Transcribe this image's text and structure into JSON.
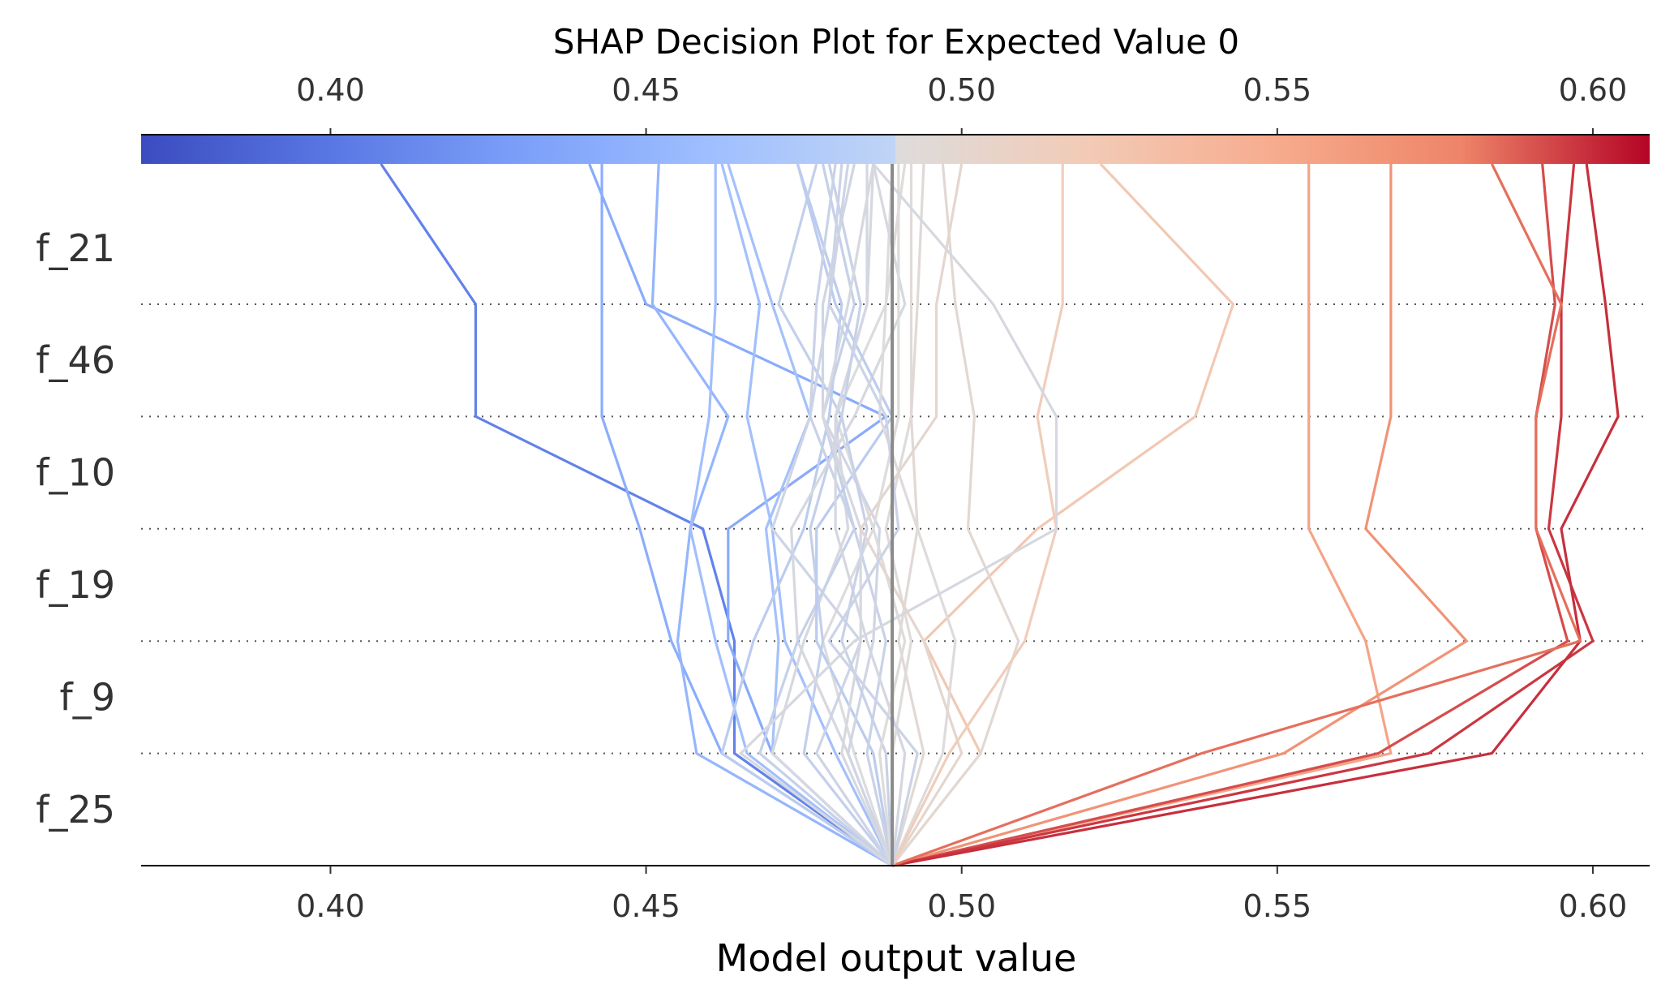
{
  "chart_data": {
    "type": "line",
    "title": "SHAP Decision Plot for Expected Value 0",
    "xlabel": "Model output value",
    "ylabel": "",
    "features": [
      "f_21",
      "f_46",
      "f_10",
      "f_19",
      "f_9",
      "f_25"
    ],
    "xlim": [
      0.37,
      0.609
    ],
    "xticks": [
      0.4,
      0.45,
      0.5,
      0.55,
      0.6
    ],
    "tick_labels": [
      "0.40",
      "0.45",
      "0.50",
      "0.55",
      "0.60"
    ],
    "base_value": 0.489,
    "colormap": "coolwarm",
    "colorbar_range": [
      0.37,
      0.609
    ],
    "grid": "dotted horizontal lines between features",
    "series": [
      {
        "values": [
          0.489,
          0.503,
          0.494,
          0.512,
          0.537,
          0.543,
          0.522
        ]
      },
      {
        "values": [
          0.489,
          0.568,
          0.564,
          0.555,
          0.555,
          0.555,
          0.555
        ]
      },
      {
        "values": [
          0.489,
          0.551,
          0.58,
          0.564,
          0.568,
          0.568,
          0.568
        ]
      },
      {
        "values": [
          0.489,
          0.566,
          0.596,
          0.591,
          0.591,
          0.594,
          0.592
        ]
      },
      {
        "values": [
          0.489,
          0.574,
          0.6,
          0.593,
          0.595,
          0.595,
          0.597
        ]
      },
      {
        "values": [
          0.489,
          0.584,
          0.598,
          0.595,
          0.604,
          0.602,
          0.599
        ]
      },
      {
        "values": [
          0.489,
          0.538,
          0.598,
          0.591,
          0.591,
          0.595,
          0.584
        ]
      },
      {
        "values": [
          0.489,
          0.464,
          0.464,
          0.459,
          0.423,
          0.423,
          0.408
        ]
      },
      {
        "values": [
          0.489,
          0.47,
          0.463,
          0.463,
          0.488,
          0.45,
          0.441
        ]
      },
      {
        "values": [
          0.489,
          0.462,
          0.454,
          0.449,
          0.443,
          0.443,
          0.443
        ]
      },
      {
        "values": [
          0.489,
          0.458,
          0.455,
          0.457,
          0.463,
          0.451,
          0.452
        ]
      },
      {
        "values": [
          0.489,
          0.466,
          0.461,
          0.457,
          0.46,
          0.461,
          0.461
        ]
      },
      {
        "values": [
          0.489,
          0.48,
          0.472,
          0.47,
          0.466,
          0.468,
          0.462
        ]
      },
      {
        "values": [
          0.489,
          0.47,
          0.471,
          0.469,
          0.476,
          0.47,
          0.463
        ]
      },
      {
        "values": [
          0.489,
          0.462,
          0.467,
          0.475,
          0.479,
          0.481,
          0.474
        ]
      },
      {
        "values": [
          0.489,
          0.47,
          0.475,
          0.482,
          0.48,
          0.485,
          0.486
        ]
      },
      {
        "values": [
          0.489,
          0.483,
          0.478,
          0.486,
          0.48,
          0.488,
          0.489
        ]
      },
      {
        "values": [
          0.489,
          0.475,
          0.478,
          0.476,
          0.481,
          0.471,
          0.477
        ]
      },
      {
        "values": [
          0.489,
          0.482,
          0.474,
          0.473,
          0.483,
          0.491,
          0.486
        ]
      },
      {
        "values": [
          0.489,
          0.477,
          0.484,
          0.47,
          0.476,
          0.479,
          0.482
        ]
      },
      {
        "values": [
          0.489,
          0.468,
          0.474,
          0.483,
          0.478,
          0.483,
          0.478
        ]
      },
      {
        "values": [
          0.489,
          0.486,
          0.477,
          0.477,
          0.489,
          0.48,
          0.474
        ]
      },
      {
        "values": [
          0.489,
          0.485,
          0.488,
          0.483,
          0.476,
          0.477,
          0.48
        ]
      },
      {
        "values": [
          0.489,
          0.491,
          0.485,
          0.48,
          0.48,
          0.485,
          0.485
        ]
      },
      {
        "values": [
          0.489,
          0.482,
          0.486,
          0.487,
          0.478,
          0.478,
          0.483
        ]
      },
      {
        "values": [
          0.489,
          0.488,
          0.481,
          0.485,
          0.481,
          0.484,
          0.479
        ]
      },
      {
        "values": [
          0.489,
          0.481,
          0.484,
          0.484,
          0.478,
          0.482,
          0.486
        ]
      },
      {
        "values": [
          0.489,
          0.489,
          0.492,
          0.488,
          0.492,
          0.492,
          0.492
        ]
      },
      {
        "values": [
          0.489,
          0.487,
          0.491,
          0.486,
          0.49,
          0.49,
          0.49
        ]
      },
      {
        "values": [
          0.489,
          0.494,
          0.49,
          0.493,
          0.492,
          0.493,
          0.494
        ]
      },
      {
        "values": [
          0.489,
          0.497,
          0.499,
          0.493,
          0.487,
          0.488,
          0.491
        ]
      },
      {
        "values": [
          0.489,
          0.503,
          0.509,
          0.501,
          0.502,
          0.499,
          0.497
        ]
      },
      {
        "values": [
          0.489,
          0.5,
          0.494,
          0.484,
          0.496,
          0.496,
          0.5
        ]
      },
      {
        "values": [
          0.489,
          0.498,
          0.51,
          0.515,
          0.512,
          0.516,
          0.516
        ]
      },
      {
        "values": [
          0.489,
          0.465,
          0.483,
          0.515,
          0.515,
          0.505,
          0.486
        ]
      },
      {
        "values": [
          0.489,
          0.493,
          0.479,
          0.49,
          0.488,
          0.479,
          0.481
        ]
      }
    ]
  }
}
